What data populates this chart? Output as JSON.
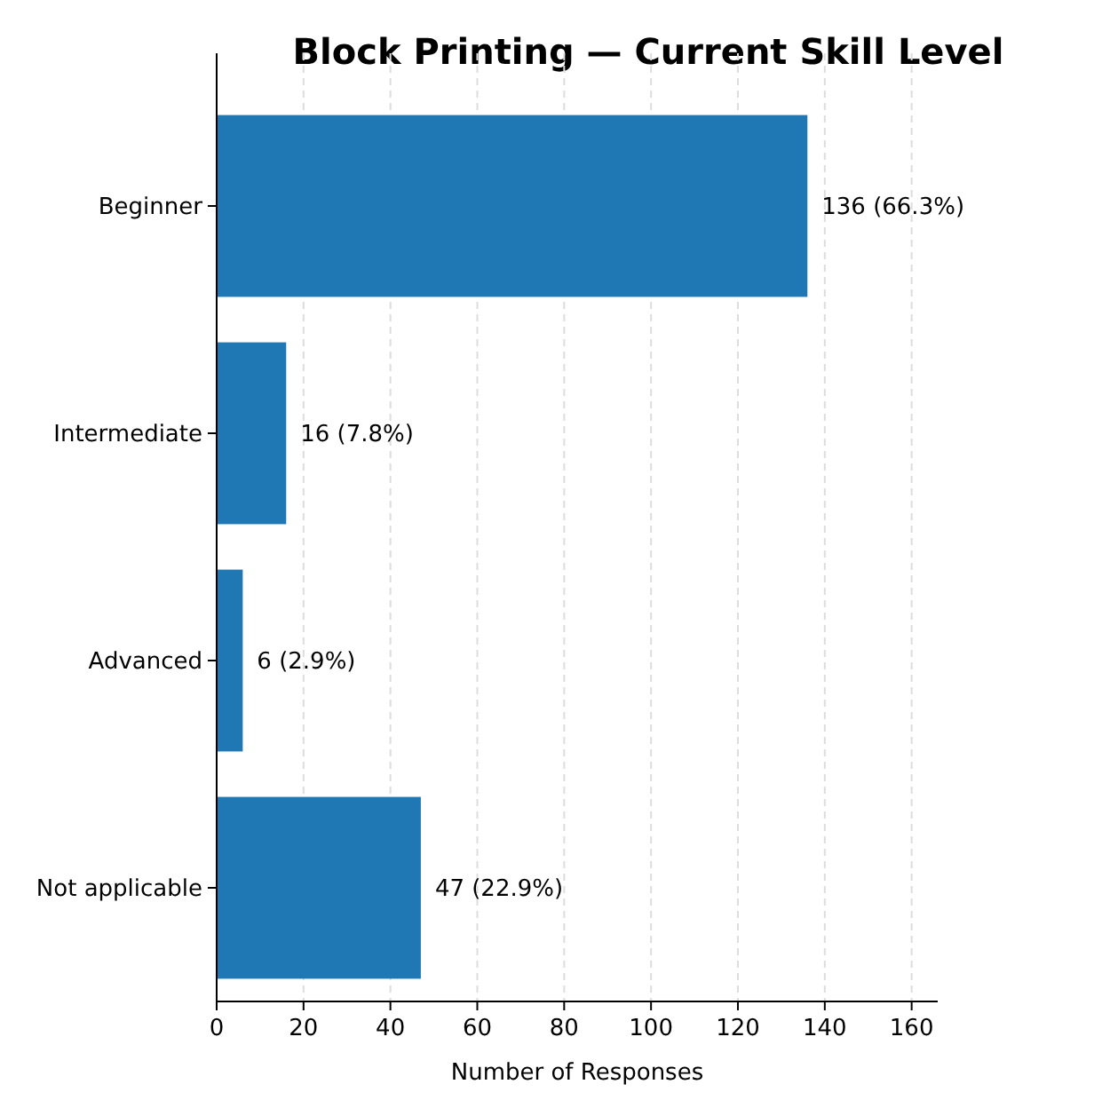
{
  "chart_data": {
    "type": "bar",
    "orientation": "horizontal",
    "title": "Block Printing — Current Skill Level",
    "xlabel": "Number of Responses",
    "categories": [
      "Beginner",
      "Intermediate",
      "Advanced",
      "Not applicable"
    ],
    "values": [
      136,
      16,
      6,
      47
    ],
    "value_labels": [
      "136 (66.3%)",
      "16 (7.8%)",
      "6 (2.9%)",
      "47 (22.9%)"
    ],
    "color": "#1f77b4",
    "xlim": [
      0,
      166
    ],
    "xticks": [
      0,
      20,
      40,
      60,
      80,
      100,
      120,
      140,
      160
    ],
    "grid": "x"
  }
}
